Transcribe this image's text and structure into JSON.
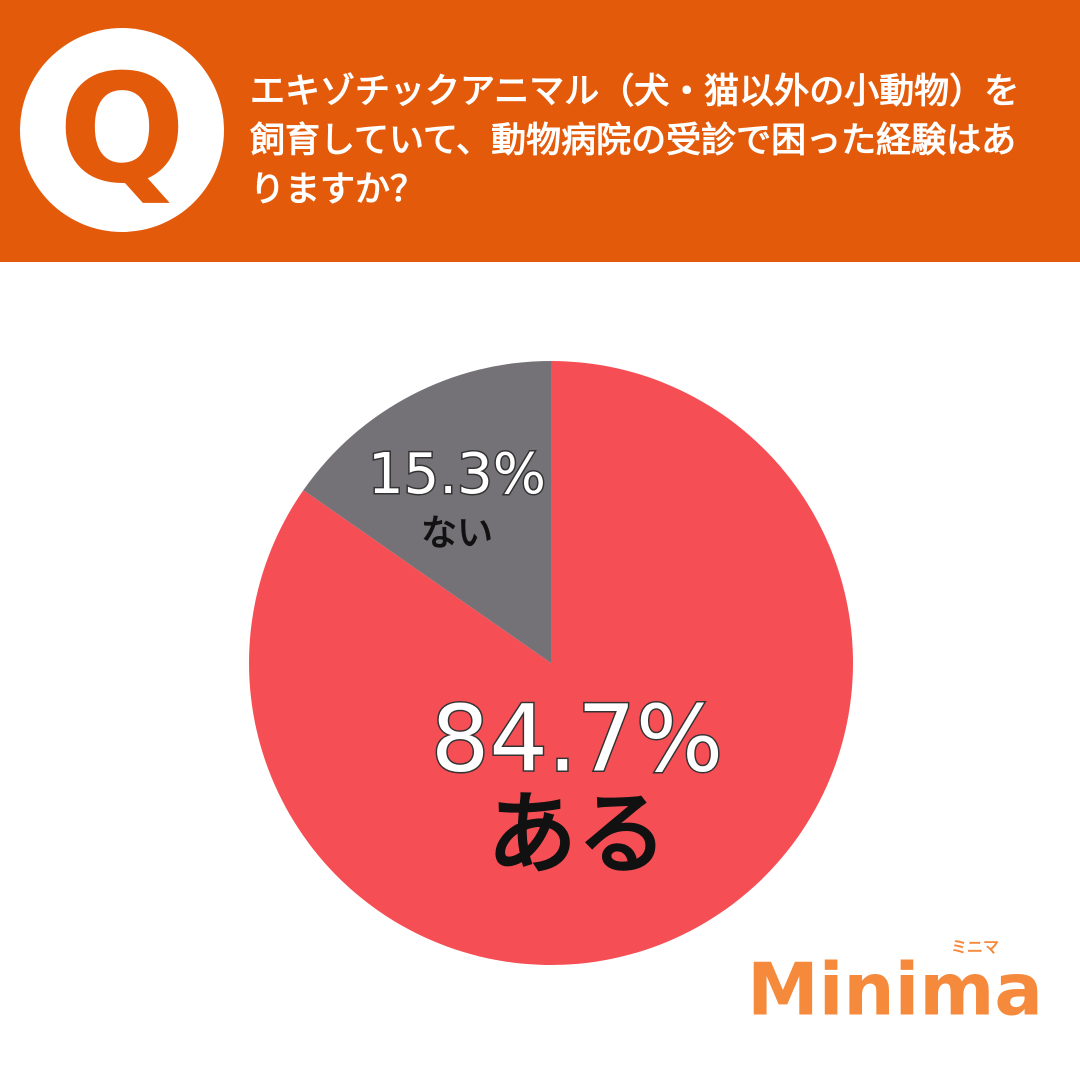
{
  "header": {
    "icon": "Q"
  },
  "chart_data": {
    "type": "pie",
    "title": "エキゾチックアニマル（犬・猫以外の小動物）を飼育していて、動物病院の受診で困った経験はありますか？",
    "categories": [
      "ある",
      "ない"
    ],
    "values": [
      84.7,
      15.3
    ],
    "value_labels": [
      "84.7%",
      "15.3%"
    ],
    "colors": [
      "#f54f55",
      "#747276"
    ]
  },
  "logo": {
    "name": "Minima",
    "reading": "ミニマ"
  }
}
